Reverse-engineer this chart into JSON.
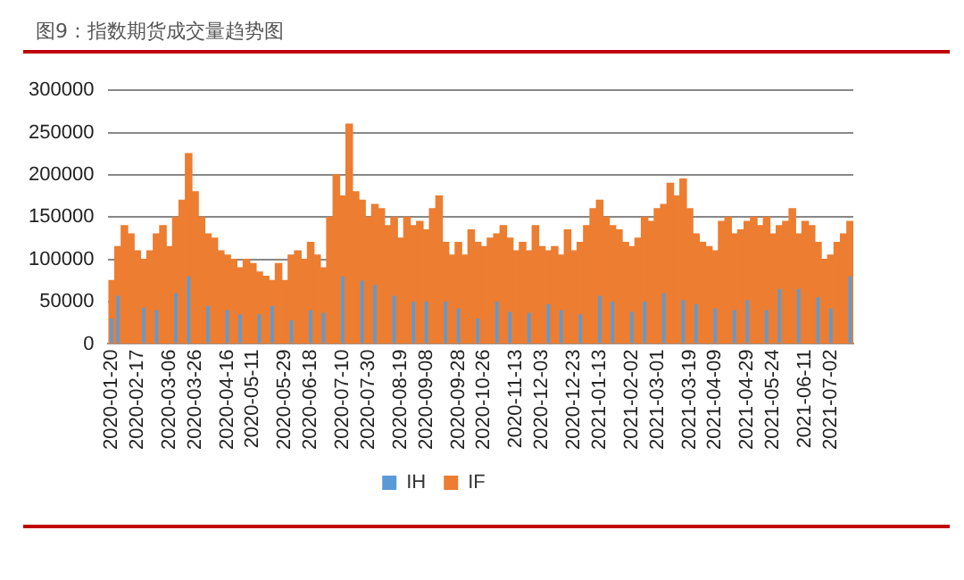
{
  "chart_data": {
    "type": "bar",
    "title": "图9：指数期货成交量趋势图",
    "categories": [
      "2020-01-20",
      null,
      null,
      null,
      "2020-02-17",
      null,
      null,
      null,
      null,
      "2020-03-06",
      null,
      null,
      null,
      "2020-03-26",
      null,
      null,
      null,
      null,
      "2020-04-16",
      null,
      null,
      null,
      "2020-05-11",
      null,
      null,
      null,
      null,
      "2020-05-29",
      null,
      null,
      null,
      "2020-06-18",
      null,
      null,
      null,
      null,
      "2020-07-10",
      null,
      null,
      null,
      "2020-07-30",
      null,
      null,
      null,
      null,
      "2020-08-19",
      null,
      null,
      null,
      "2020-09-08",
      null,
      null,
      null,
      null,
      "2020-09-28",
      null,
      null,
      null,
      "2020-10-26",
      null,
      null,
      null,
      null,
      "2020-11-13",
      null,
      null,
      null,
      "2020-12-03",
      null,
      null,
      null,
      null,
      "2020-12-23",
      null,
      null,
      null,
      "2021-01-13",
      null,
      null,
      null,
      null,
      "2021-02-02",
      null,
      null,
      null,
      "2021-03-01",
      null,
      null,
      null,
      null,
      "2021-03-19",
      null,
      null,
      null,
      "2021-04-09",
      null,
      null,
      null,
      null,
      "2021-04-29",
      null,
      null,
      null,
      "2021-05-24",
      null,
      null,
      null,
      null,
      "2021-06-11",
      null,
      null,
      null,
      "2021-07-02",
      null,
      null,
      null
    ],
    "series": [
      {
        "name": "IH",
        "color": "#5b9bd5",
        "values": [
          30000,
          57000,
          null,
          null,
          null,
          43000,
          null,
          40000,
          null,
          null,
          60000,
          null,
          80000,
          null,
          null,
          45000,
          null,
          null,
          40000,
          null,
          35000,
          null,
          null,
          35000,
          null,
          45000,
          null,
          null,
          28000,
          null,
          null,
          40000,
          null,
          37000,
          null,
          null,
          80000,
          null,
          null,
          75000,
          null,
          70000,
          null,
          null,
          57000,
          null,
          null,
          50000,
          null,
          50000,
          null,
          null,
          50000,
          null,
          42000,
          null,
          null,
          30000,
          null,
          null,
          50000,
          null,
          38000,
          null,
          null,
          37000,
          null,
          null,
          47000,
          null,
          40000,
          null,
          null,
          35000,
          null,
          null,
          57000,
          null,
          50000,
          null,
          null,
          38000,
          null,
          50000,
          null,
          null,
          60000,
          null,
          null,
          52000,
          null,
          47000,
          null,
          null,
          42000,
          null,
          null,
          40000,
          null,
          52000,
          null,
          null,
          40000,
          null,
          65000,
          null,
          null,
          65000,
          null,
          null,
          55000,
          null,
          42000,
          null,
          null,
          80000
        ]
      },
      {
        "name": "IF",
        "color": "#ed7d31",
        "values": [
          75000,
          115000,
          140000,
          130000,
          110000,
          100000,
          110000,
          130000,
          140000,
          115000,
          150000,
          170000,
          225000,
          180000,
          150000,
          130000,
          125000,
          110000,
          105000,
          100000,
          90000,
          100000,
          95000,
          85000,
          80000,
          75000,
          95000,
          75000,
          105000,
          110000,
          100000,
          120000,
          105000,
          90000,
          150000,
          200000,
          175000,
          260000,
          180000,
          170000,
          150000,
          165000,
          160000,
          140000,
          150000,
          125000,
          150000,
          140000,
          145000,
          135000,
          160000,
          175000,
          120000,
          105000,
          120000,
          105000,
          135000,
          120000,
          115000,
          125000,
          130000,
          140000,
          125000,
          110000,
          120000,
          110000,
          140000,
          115000,
          110000,
          115000,
          105000,
          135000,
          110000,
          120000,
          140000,
          160000,
          170000,
          150000,
          140000,
          135000,
          120000,
          115000,
          125000,
          150000,
          145000,
          160000,
          165000,
          190000,
          175000,
          195000,
          160000,
          130000,
          120000,
          115000,
          110000,
          145000,
          150000,
          130000,
          135000,
          145000,
          150000,
          140000,
          150000,
          130000,
          140000,
          145000,
          160000,
          130000,
          145000,
          140000,
          120000,
          100000,
          105000,
          120000,
          130000,
          145000
        ]
      }
    ],
    "ylim": [
      0,
      300000
    ],
    "yticks": [
      0,
      50000,
      100000,
      150000,
      200000,
      250000,
      300000
    ],
    "grid": "y",
    "legend": "bottom"
  }
}
